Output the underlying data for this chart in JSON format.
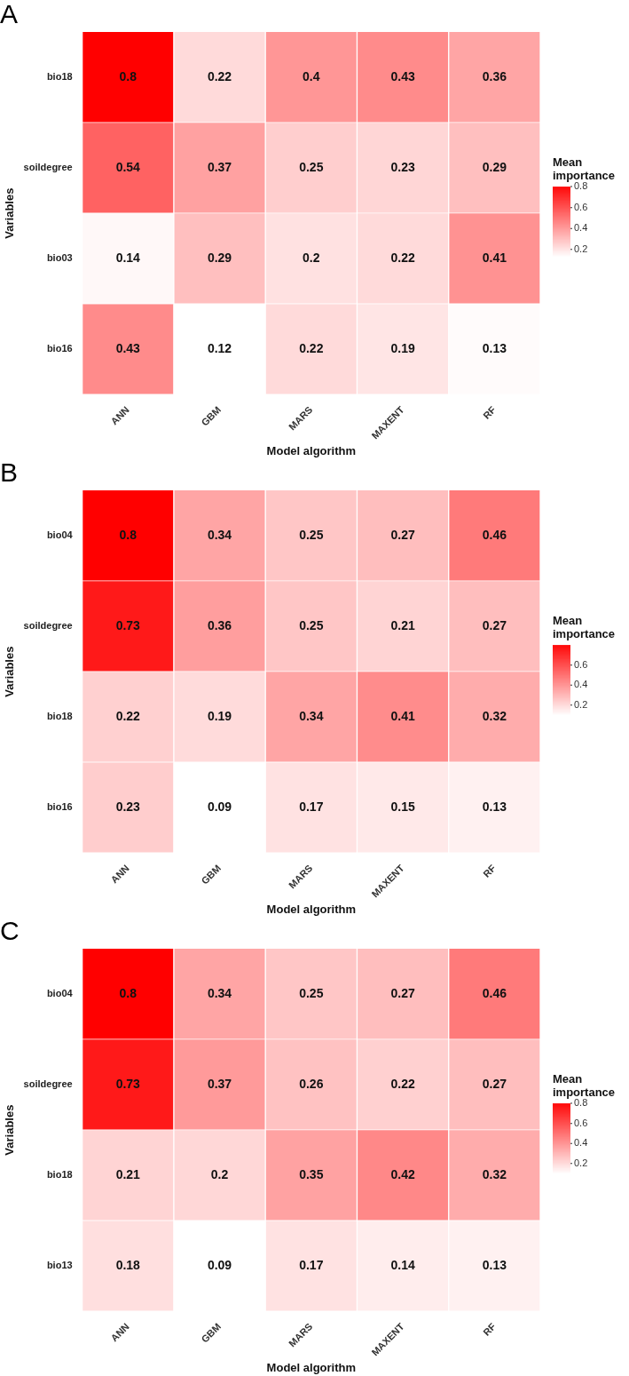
{
  "chart_data": [
    {
      "type": "heatmap",
      "title": "A",
      "xlabel": "Model algorithm",
      "ylabel": "Variables",
      "legend_title": "Mean importance",
      "data_labels": true,
      "categories": [
        "ANN",
        "GBM",
        "MARS",
        "MAXENT",
        "RF"
      ],
      "y_categories": [
        "bio18",
        "soildegree",
        "bio03",
        "bio16"
      ],
      "cells": [
        [
          0.8,
          0.22,
          0.4,
          0.43,
          0.36
        ],
        [
          0.54,
          0.37,
          0.25,
          0.23,
          0.29
        ],
        [
          0.14,
          0.29,
          0.2,
          0.22,
          0.41
        ],
        [
          0.43,
          0.12,
          0.22,
          0.19,
          0.13
        ]
      ],
      "clim": [
        0.12,
        0.8
      ],
      "cticks": [
        0.2,
        0.4,
        0.6,
        0.8
      ]
    },
    {
      "type": "heatmap",
      "title": "B",
      "xlabel": "Model algorithm",
      "ylabel": "Variables",
      "legend_title": "Mean importance",
      "data_labels": true,
      "categories": [
        "ANN",
        "GBM",
        "MARS",
        "MAXENT",
        "RF"
      ],
      "y_categories": [
        "bio04",
        "soildegree",
        "bio18",
        "bio16"
      ],
      "cells": [
        [
          0.8,
          0.34,
          0.25,
          0.27,
          0.46
        ],
        [
          0.73,
          0.36,
          0.25,
          0.21,
          0.27
        ],
        [
          0.22,
          0.19,
          0.34,
          0.41,
          0.32
        ],
        [
          0.23,
          0.09,
          0.17,
          0.15,
          0.13
        ]
      ],
      "clim": [
        0.09,
        0.8
      ],
      "cticks": [
        0.2,
        0.4,
        0.6
      ]
    },
    {
      "type": "heatmap",
      "title": "C",
      "xlabel": "Model algorithm",
      "ylabel": "Variables",
      "legend_title": "Mean importance",
      "data_labels": true,
      "categories": [
        "ANN",
        "GBM",
        "MARS",
        "MAXENT",
        "RF"
      ],
      "y_categories": [
        "bio04",
        "soildegree",
        "bio18",
        "bio13"
      ],
      "cells": [
        [
          0.8,
          0.34,
          0.25,
          0.27,
          0.46
        ],
        [
          0.73,
          0.37,
          0.26,
          0.22,
          0.27
        ],
        [
          0.21,
          0.2,
          0.35,
          0.42,
          0.32
        ],
        [
          0.18,
          0.09,
          0.17,
          0.14,
          0.13
        ]
      ],
      "clim": [
        0.09,
        0.8
      ],
      "cticks": [
        0.2,
        0.4,
        0.6,
        0.8
      ]
    }
  ]
}
